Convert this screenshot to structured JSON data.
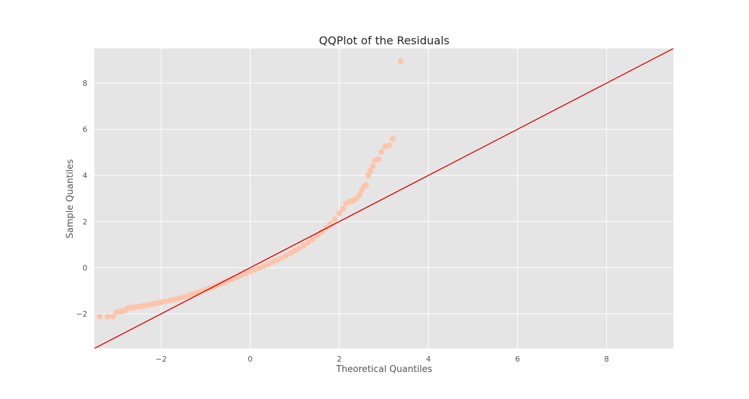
{
  "chart_data": {
    "type": "scatter",
    "title": "QQPlot of the Residuals",
    "xlabel": "Theoretical Quantiles",
    "ylabel": "Sample Quantiles",
    "xlim": [
      -3.5,
      9.5
    ],
    "ylim": [
      -3.5,
      9.5
    ],
    "xticks": [
      -2,
      0,
      2,
      4,
      6,
      8
    ],
    "yticks": [
      -2,
      0,
      2,
      4,
      6,
      8
    ],
    "xtick_labels": [
      "−2",
      "0",
      "2",
      "4",
      "6",
      "8"
    ],
    "ytick_labels": [
      "−2",
      "0",
      "2",
      "4",
      "6",
      "8"
    ],
    "grid": true,
    "background": "#e5e5e5",
    "grid_color": "#ffffff",
    "point_color": "#fdc4aa",
    "line_color": "#dd0000",
    "reference_line": {
      "slope": 1,
      "intercept": 0
    },
    "points": [
      [
        -3.38,
        -2.12
      ],
      [
        -3.2,
        -2.12
      ],
      [
        -3.08,
        -2.12
      ],
      [
        -3.0,
        -1.92
      ],
      [
        -2.92,
        -1.9
      ],
      [
        -2.85,
        -1.88
      ],
      [
        -2.8,
        -1.85
      ],
      [
        -2.75,
        -1.76
      ],
      [
        -2.7,
        -1.73
      ],
      [
        -2.62,
        -1.72
      ],
      [
        -2.55,
        -1.7
      ],
      [
        -2.48,
        -1.68
      ],
      [
        -2.4,
        -1.66
      ],
      [
        -2.32,
        -1.63
      ],
      [
        -2.24,
        -1.6
      ],
      [
        -2.16,
        -1.57
      ],
      [
        -2.08,
        -1.54
      ],
      [
        -2.0,
        -1.5
      ],
      [
        -1.9,
        -1.46
      ],
      [
        -1.8,
        -1.42
      ],
      [
        -1.7,
        -1.37
      ],
      [
        -1.6,
        -1.32
      ],
      [
        -1.5,
        -1.27
      ],
      [
        -1.4,
        -1.21
      ],
      [
        -1.3,
        -1.15
      ],
      [
        -1.2,
        -1.09
      ],
      [
        -1.1,
        -1.02
      ],
      [
        -1.0,
        -0.95
      ],
      [
        -0.9,
        -0.88
      ],
      [
        -0.8,
        -0.81
      ],
      [
        -0.7,
        -0.73
      ],
      [
        -0.6,
        -0.65
      ],
      [
        -0.5,
        -0.57
      ],
      [
        -0.4,
        -0.49
      ],
      [
        -0.3,
        -0.41
      ],
      [
        -0.2,
        -0.33
      ],
      [
        -0.1,
        -0.25
      ],
      [
        0.0,
        -0.17
      ],
      [
        0.1,
        -0.09
      ],
      [
        0.2,
        -0.01
      ],
      [
        0.3,
        0.07
      ],
      [
        0.4,
        0.15
      ],
      [
        0.5,
        0.24
      ],
      [
        0.6,
        0.33
      ],
      [
        0.7,
        0.42
      ],
      [
        0.8,
        0.52
      ],
      [
        0.9,
        0.62
      ],
      [
        1.0,
        0.73
      ],
      [
        1.1,
        0.84
      ],
      [
        1.2,
        0.96
      ],
      [
        1.3,
        1.09
      ],
      [
        1.4,
        1.23
      ],
      [
        1.5,
        1.38
      ],
      [
        1.6,
        1.54
      ],
      [
        1.7,
        1.72
      ],
      [
        1.8,
        1.9
      ],
      [
        1.9,
        2.1
      ],
      [
        2.0,
        2.35
      ],
      [
        2.08,
        2.55
      ],
      [
        2.15,
        2.78
      ],
      [
        2.22,
        2.85
      ],
      [
        2.3,
        2.9
      ],
      [
        2.38,
        2.98
      ],
      [
        2.45,
        3.15
      ],
      [
        2.5,
        3.35
      ],
      [
        2.55,
        3.5
      ],
      [
        2.6,
        3.58
      ],
      [
        2.65,
        4.0
      ],
      [
        2.7,
        4.2
      ],
      [
        2.75,
        4.4
      ],
      [
        2.8,
        4.65
      ],
      [
        2.88,
        4.7
      ],
      [
        2.95,
        5.02
      ],
      [
        3.03,
        5.25
      ],
      [
        3.12,
        5.3
      ],
      [
        3.2,
        5.58
      ],
      [
        3.38,
        8.95
      ]
    ]
  }
}
